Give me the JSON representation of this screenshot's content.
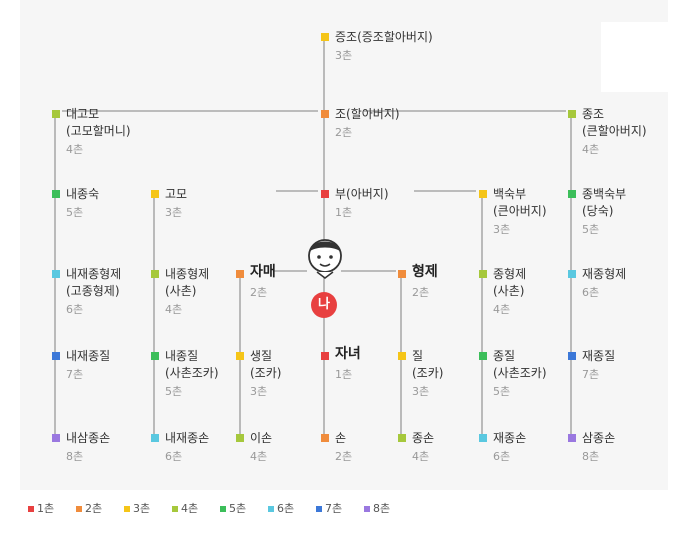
{
  "degree_colors": {
    "1": "#e84040",
    "2": "#f08c3c",
    "3": "#f5c518",
    "4": "#a6c83c",
    "5": "#3cbe5a",
    "6": "#5ac8e0",
    "7": "#3c78d8",
    "8": "#9a78e0"
  },
  "me": {
    "label": "나"
  },
  "nodes": [
    {
      "id": "jeungjo-top",
      "name": "증조(증조할아버지)",
      "degree": "3촌",
      "d": 3
    },
    {
      "id": "daegomo",
      "name": "대고모\n(고모할머니)",
      "degree": "4촌",
      "d": 4
    },
    {
      "id": "jo",
      "name": "조(할아버지)",
      "degree": "2촌",
      "d": 2
    },
    {
      "id": "jongjo",
      "name": "종조\n(큰할아버지)",
      "degree": "4촌",
      "d": 4
    },
    {
      "id": "naejongsuk",
      "name": "내종숙",
      "degree": "5촌",
      "d": 5
    },
    {
      "id": "gomo",
      "name": "고모",
      "degree": "3촌",
      "d": 3
    },
    {
      "id": "bu",
      "name": "부(아버지)",
      "degree": "1촌",
      "d": 1
    },
    {
      "id": "baeksukbu",
      "name": "백숙부\n(큰아버지)",
      "degree": "3촌",
      "d": 3
    },
    {
      "id": "jongbaeksukbu",
      "name": "종백숙부\n(당숙)",
      "degree": "5촌",
      "d": 5
    },
    {
      "id": "naejaejonghyeongje",
      "name": "내재종형제\n(고종형제)",
      "degree": "6촌",
      "d": 6
    },
    {
      "id": "naejonghyeongje",
      "name": "내종형제\n(사촌)",
      "degree": "4촌",
      "d": 4
    },
    {
      "id": "jamae",
      "name": "자매",
      "degree": "2촌",
      "d": 2,
      "big": true
    },
    {
      "id": "hyeongje",
      "name": "형제",
      "degree": "2촌",
      "d": 2,
      "big": true
    },
    {
      "id": "jonghyeongje",
      "name": "종형제\n(사촌)",
      "degree": "4촌",
      "d": 4
    },
    {
      "id": "jaejonghyeongje",
      "name": "재종형제",
      "degree": "6촌",
      "d": 6
    },
    {
      "id": "naejaejongjil",
      "name": "내재종질",
      "degree": "7촌",
      "d": 7
    },
    {
      "id": "naejongjil",
      "name": "내종질\n(사촌조카)",
      "degree": "5촌",
      "d": 5
    },
    {
      "id": "saengjil",
      "name": "생질\n(조카)",
      "degree": "3촌",
      "d": 3
    },
    {
      "id": "janyeo",
      "name": "자녀",
      "degree": "1촌",
      "d": 1,
      "big": true
    },
    {
      "id": "jil",
      "name": "질\n(조카)",
      "degree": "3촌",
      "d": 3
    },
    {
      "id": "jongjil",
      "name": "종질\n(사촌조카)",
      "degree": "5촌",
      "d": 5
    },
    {
      "id": "jaejongjil",
      "name": "재종질",
      "degree": "7촌",
      "d": 7
    },
    {
      "id": "naesamjongson",
      "name": "내삼종손",
      "degree": "8촌",
      "d": 8
    },
    {
      "id": "naejaejongson",
      "name": "내재종손",
      "degree": "6촌",
      "d": 6
    },
    {
      "id": "ison",
      "name": "이손",
      "degree": "4촌",
      "d": 4
    },
    {
      "id": "son",
      "name": "손",
      "degree": "2촌",
      "d": 2
    },
    {
      "id": "jongson",
      "name": "종손",
      "degree": "4촌",
      "d": 4
    },
    {
      "id": "jaejongson",
      "name": "재종손",
      "degree": "6촌",
      "d": 6
    },
    {
      "id": "samjongson",
      "name": "삼종손",
      "degree": "8촌",
      "d": 8
    }
  ],
  "legend": [
    {
      "label": "1촌",
      "d": 1
    },
    {
      "label": "2촌",
      "d": 2
    },
    {
      "label": "3촌",
      "d": 3
    },
    {
      "label": "4촌",
      "d": 4
    },
    {
      "label": "5촌",
      "d": 5
    },
    {
      "label": "6촌",
      "d": 6
    },
    {
      "label": "7촌",
      "d": 7
    },
    {
      "label": "8촌",
      "d": 8
    }
  ]
}
